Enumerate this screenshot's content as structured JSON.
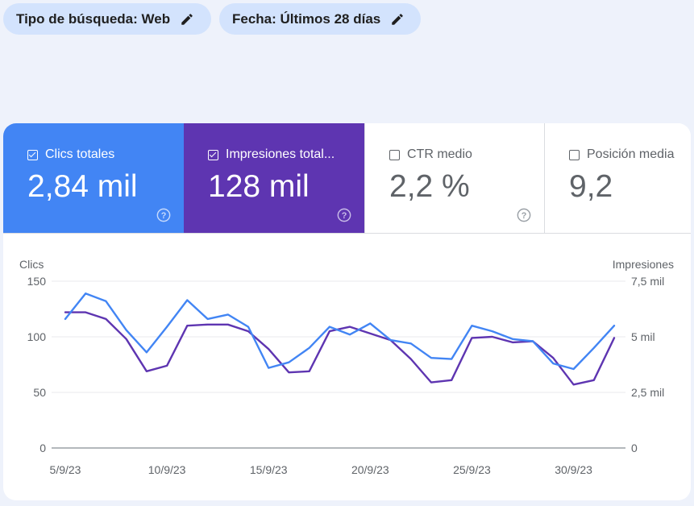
{
  "filters": {
    "search_type": "Tipo de búsqueda: Web",
    "date": "Fecha: Últimos 28 días"
  },
  "metrics": [
    {
      "label": "Clics totales",
      "value": "2,84 mil",
      "checked": true,
      "color": "#4285f4"
    },
    {
      "label": "Impresiones total...",
      "value": "128 mil",
      "checked": true,
      "color": "#5e35b1"
    },
    {
      "label": "CTR medio",
      "value": "2,2 %",
      "checked": false
    },
    {
      "label": "Posición media",
      "value": "9,2",
      "checked": false
    }
  ],
  "chart_data": {
    "type": "line",
    "ylabel": "Clics",
    "y2label": "Impresiones",
    "x": [
      "5/9/23",
      "6/9/23",
      "7/9/23",
      "8/9/23",
      "9/9/23",
      "10/9/23",
      "11/9/23",
      "12/9/23",
      "13/9/23",
      "14/9/23",
      "15/9/23",
      "16/9/23",
      "17/9/23",
      "18/9/23",
      "19/9/23",
      "20/9/23",
      "21/9/23",
      "22/9/23",
      "23/9/23",
      "24/9/23",
      "25/9/23",
      "26/9/23",
      "27/9/23",
      "28/9/23",
      "29/9/23",
      "30/9/23",
      "1/10/23",
      "2/10/23"
    ],
    "xticks": [
      "5/9/23",
      "10/9/23",
      "15/9/23",
      "20/9/23",
      "25/9/23",
      "30/9/23"
    ],
    "ylim": [
      0,
      150
    ],
    "yticks": [
      "0",
      "50",
      "100",
      "150"
    ],
    "y2lim": [
      0,
      7500
    ],
    "y2ticks": [
      "0",
      "2,5 mil",
      "5 mil",
      "7,5 mil"
    ],
    "grid": true,
    "series": [
      {
        "name": "Clics",
        "axis": "left",
        "color": "#4285f4",
        "values": [
          116,
          139,
          132,
          106,
          86,
          109,
          133,
          116,
          120,
          109,
          72,
          77,
          90,
          109,
          102,
          112,
          97,
          94,
          81,
          80,
          110,
          105,
          98,
          96,
          76,
          71,
          90,
          110
        ]
      },
      {
        "name": "Impresiones",
        "axis": "right",
        "color": "#5e35b1",
        "values": [
          6100,
          6100,
          5800,
          4900,
          3450,
          3700,
          5500,
          5550,
          5550,
          5250,
          4450,
          3400,
          3450,
          5250,
          5450,
          5150,
          4850,
          4000,
          2950,
          3050,
          4950,
          5000,
          4750,
          4800,
          4050,
          2850,
          3050,
          4950
        ]
      }
    ]
  }
}
